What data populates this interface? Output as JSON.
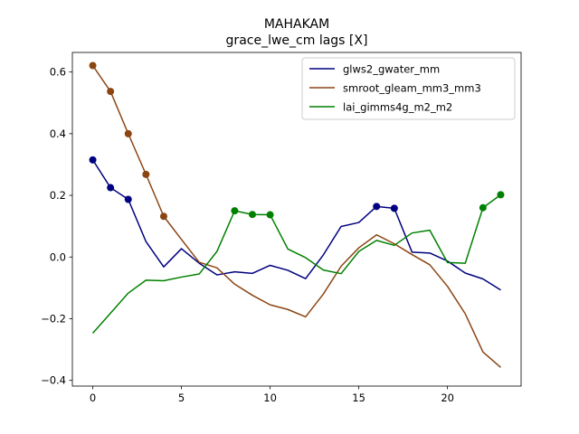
{
  "chart_data": {
    "type": "line",
    "title_line1": "MAHAKAM",
    "title_line2": "grace_lwe_cm lags [X]",
    "xlabel": "",
    "ylabel": "",
    "xlim": [
      -1.15,
      24.15
    ],
    "ylim": [
      -0.4185,
      0.6635
    ],
    "xticks": [
      0,
      5,
      10,
      15,
      20
    ],
    "yticks": [
      -0.4,
      -0.2,
      0.0,
      0.2,
      0.4,
      0.6
    ],
    "ytick_labels": [
      "−0.4",
      "−0.2",
      "0.0",
      "0.2",
      "0.4",
      "0.6"
    ],
    "grid": false,
    "legend_position": "upper right",
    "x": [
      0,
      1,
      2,
      3,
      4,
      5,
      6,
      7,
      8,
      9,
      10,
      11,
      12,
      13,
      14,
      15,
      16,
      17,
      18,
      19,
      20,
      21,
      22,
      23
    ],
    "series": [
      {
        "name": "glws2_gwater_mm",
        "color": "#000080",
        "values": [
          0.315,
          0.225,
          0.187,
          0.05,
          -0.032,
          0.027,
          -0.02,
          -0.058,
          -0.048,
          -0.053,
          -0.027,
          -0.043,
          -0.07,
          0.007,
          0.099,
          0.112,
          0.164,
          0.158,
          0.016,
          0.013,
          -0.013,
          -0.052,
          -0.071,
          -0.107
        ],
        "markers": [
          0,
          1,
          2,
          16,
          17
        ]
      },
      {
        "name": "smroot_gleam_mm3_mm3",
        "color": "#8B4513",
        "values": [
          0.621,
          0.537,
          0.4,
          0.268,
          0.132,
          0.057,
          -0.017,
          -0.035,
          -0.088,
          -0.124,
          -0.155,
          -0.17,
          -0.194,
          -0.12,
          -0.03,
          0.03,
          0.072,
          0.043,
          0.008,
          -0.025,
          -0.095,
          -0.184,
          -0.308,
          -0.358
        ],
        "markers": [
          0,
          1,
          2,
          3,
          4
        ]
      },
      {
        "name": "lai_gimms4g_m2_m2",
        "color": "#008000",
        "values": [
          -0.247,
          -0.182,
          -0.117,
          -0.075,
          -0.077,
          -0.065,
          -0.055,
          0.018,
          0.15,
          0.138,
          0.137,
          0.026,
          -0.002,
          -0.042,
          -0.054,
          0.018,
          0.054,
          0.038,
          0.078,
          0.087,
          -0.018,
          -0.02,
          0.16,
          0.202
        ],
        "markers": [
          8,
          9,
          10,
          22,
          23
        ]
      }
    ]
  }
}
